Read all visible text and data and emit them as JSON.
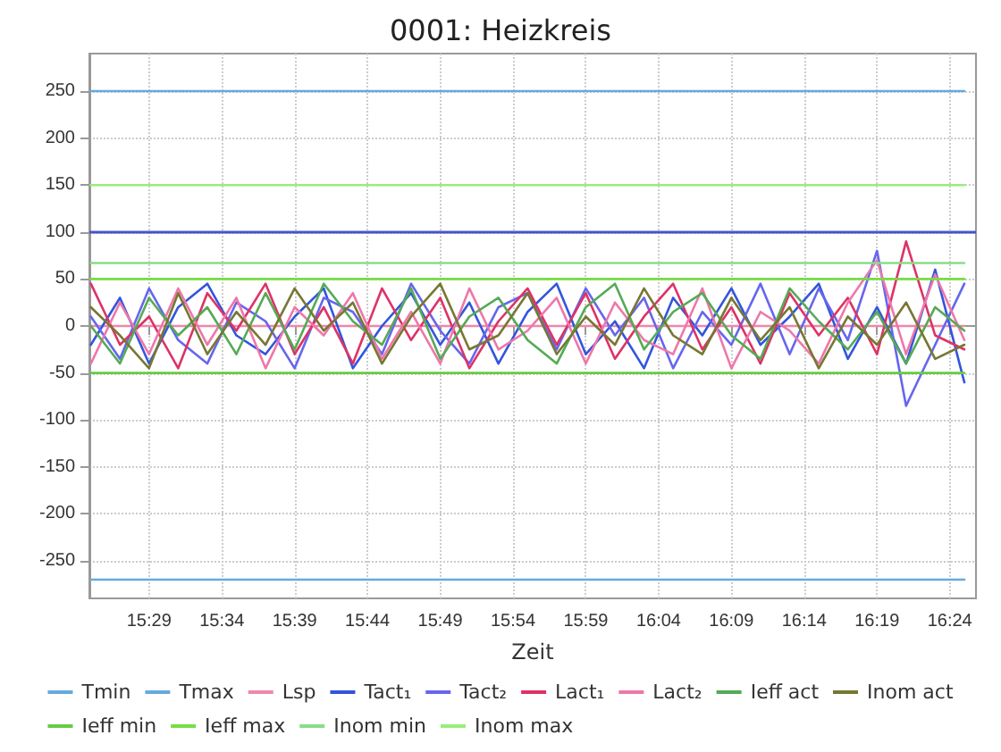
{
  "chart_data": {
    "type": "line",
    "title": "0001: Heizkreis",
    "xlabel": "Zeit",
    "x": [
      15.4167,
      15.45,
      15.4833,
      15.5167,
      15.55,
      15.5833,
      15.6167,
      15.65,
      15.6833,
      15.7167,
      15.75,
      15.7833,
      15.8167,
      15.85,
      15.8833,
      15.9167,
      15.95,
      15.9833,
      16.0167,
      16.05,
      16.0833,
      16.1167,
      16.15,
      16.1833,
      16.2167,
      16.25,
      16.2833,
      16.3167,
      16.35,
      16.3833,
      16.4167
    ],
    "xlim": [
      15.415,
      16.43
    ],
    "xticks": [
      {
        "value": 15.4833,
        "label": "15:29"
      },
      {
        "value": 15.5667,
        "label": "15:34"
      },
      {
        "value": 15.65,
        "label": "15:39"
      },
      {
        "value": 15.7333,
        "label": "15:44"
      },
      {
        "value": 15.8167,
        "label": "15:49"
      },
      {
        "value": 15.9,
        "label": "15:54"
      },
      {
        "value": 15.9833,
        "label": "15:59"
      },
      {
        "value": 16.0667,
        "label": "16:04"
      },
      {
        "value": 16.15,
        "label": "16:09"
      },
      {
        "value": 16.2333,
        "label": "16:14"
      },
      {
        "value": 16.3167,
        "label": "16:19"
      },
      {
        "value": 16.4,
        "label": "16:24"
      }
    ],
    "ylim": [
      -290,
      290
    ],
    "yticks": [
      -250,
      -200,
      -150,
      -100,
      -50,
      0,
      50,
      100,
      150,
      200,
      250
    ],
    "grid": true,
    "legend": "bottom",
    "marker": "none",
    "line_style": "solid",
    "ref_lines": [
      {
        "axis": "y",
        "value": 100,
        "label": null,
        "color": "#4455cc"
      }
    ],
    "series": [
      {
        "name": "Tmin",
        "color": "#66aadd",
        "values": [
          -270,
          -270,
          -270,
          -270,
          -270,
          -270,
          -270,
          -270,
          -270,
          -270,
          -270,
          -270,
          -270,
          -270,
          -270,
          -270,
          -270,
          -270,
          -270,
          -270,
          -270,
          -270,
          -270,
          -270,
          -270,
          -270,
          -270,
          -270,
          -270,
          -270,
          -270
        ]
      },
      {
        "name": "Tmax",
        "color": "#66aadd",
        "values": [
          250,
          250,
          250,
          250,
          250,
          250,
          250,
          250,
          250,
          250,
          250,
          250,
          250,
          250,
          250,
          250,
          250,
          250,
          250,
          250,
          250,
          250,
          250,
          250,
          250,
          250,
          250,
          250,
          250,
          250,
          250
        ]
      },
      {
        "name": "Lsp",
        "color": "#ee88aa",
        "values": [
          0,
          0,
          0,
          0,
          0,
          0,
          0,
          0,
          0,
          0,
          0,
          0,
          0,
          0,
          0,
          0,
          0,
          0,
          0,
          0,
          0,
          0,
          0,
          0,
          0,
          0,
          0,
          0,
          0,
          0,
          0
        ]
      },
      {
        "name": "Tact₁",
        "color": "#3355dd",
        "values": [
          -20,
          30,
          -40,
          20,
          45,
          -10,
          -30,
          10,
          40,
          -45,
          0,
          35,
          -20,
          25,
          -40,
          15,
          45,
          -30,
          5,
          -45,
          30,
          -10,
          40,
          -20,
          10,
          45,
          -35,
          20,
          -40,
          60,
          -60
        ]
      },
      {
        "name": "Tact₂",
        "color": "#6666ee",
        "values": [
          10,
          -35,
          40,
          -15,
          -40,
          25,
          5,
          -45,
          30,
          15,
          -30,
          45,
          -5,
          -40,
          20,
          35,
          -25,
          40,
          -10,
          30,
          -45,
          15,
          -20,
          45,
          -30,
          40,
          -15,
          80,
          -85,
          -20,
          45
        ]
      },
      {
        "name": "Lact₁",
        "color": "#dd3366",
        "values": [
          45,
          -20,
          10,
          -45,
          35,
          -5,
          45,
          -30,
          20,
          -40,
          40,
          -15,
          30,
          -45,
          5,
          40,
          -20,
          35,
          -35,
          10,
          45,
          -25,
          20,
          -40,
          35,
          -10,
          30,
          -30,
          90,
          -10,
          -25
        ]
      },
      {
        "name": "Lact₂",
        "color": "#ee77aa",
        "values": [
          -40,
          25,
          -30,
          40,
          -20,
          30,
          -45,
          20,
          -10,
          35,
          -35,
          15,
          -40,
          40,
          -25,
          -5,
          30,
          -40,
          25,
          -15,
          -30,
          40,
          -45,
          15,
          -5,
          -40,
          25,
          70,
          -30,
          55,
          -15
        ]
      },
      {
        "name": "Ieff act",
        "color": "#55aa55",
        "values": [
          0,
          -40,
          30,
          -10,
          20,
          -30,
          35,
          -25,
          45,
          5,
          -20,
          40,
          -35,
          10,
          30,
          -15,
          -40,
          20,
          45,
          -25,
          15,
          35,
          -10,
          -35,
          40,
          5,
          -25,
          15,
          -40,
          20,
          -5
        ]
      },
      {
        "name": "Inom act",
        "color": "#777733",
        "values": [
          20,
          -10,
          -45,
          35,
          -30,
          15,
          -20,
          40,
          -5,
          25,
          -40,
          10,
          45,
          -25,
          -10,
          35,
          -30,
          10,
          -20,
          40,
          -10,
          -30,
          30,
          -15,
          20,
          -45,
          10,
          -20,
          25,
          -35,
          -20
        ]
      },
      {
        "name": "Ieff min",
        "color": "#66cc44",
        "values": [
          -50,
          -50,
          -50,
          -50,
          -50,
          -50,
          -50,
          -50,
          -50,
          -50,
          -50,
          -50,
          -50,
          -50,
          -50,
          -50,
          -50,
          -50,
          -50,
          -50,
          -50,
          -50,
          -50,
          -50,
          -50,
          -50,
          -50,
          -50,
          -50,
          -50,
          -50
        ]
      },
      {
        "name": "Ieff max",
        "color": "#77dd44",
        "values": [
          50,
          50,
          50,
          50,
          50,
          50,
          50,
          50,
          50,
          50,
          50,
          50,
          50,
          50,
          50,
          50,
          50,
          50,
          50,
          50,
          50,
          50,
          50,
          50,
          50,
          50,
          50,
          50,
          50,
          50,
          50
        ]
      },
      {
        "name": "Inom min",
        "color": "#88dd88",
        "values": [
          67,
          67,
          67,
          67,
          67,
          67,
          67,
          67,
          67,
          67,
          67,
          67,
          67,
          67,
          67,
          67,
          67,
          67,
          67,
          67,
          67,
          67,
          67,
          67,
          67,
          67,
          67,
          67,
          67,
          67,
          67
        ]
      },
      {
        "name": "Inom max",
        "color": "#99ee77",
        "values": [
          150,
          150,
          150,
          150,
          150,
          150,
          150,
          150,
          150,
          150,
          150,
          150,
          150,
          150,
          150,
          150,
          150,
          150,
          150,
          150,
          150,
          150,
          150,
          150,
          150,
          150,
          150,
          150,
          150,
          150,
          150
        ]
      }
    ]
  }
}
